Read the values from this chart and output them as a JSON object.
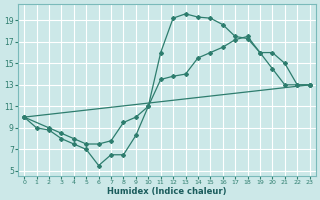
{
  "xlabel": "Humidex (Indice chaleur)",
  "bg_color": "#cce8e8",
  "grid_color": "#ffffff",
  "line_color": "#2e7d6e",
  "xlim": [
    -0.5,
    23.5
  ],
  "ylim": [
    4.5,
    20.5
  ],
  "xticks": [
    0,
    1,
    2,
    3,
    4,
    5,
    6,
    7,
    8,
    9,
    10,
    11,
    12,
    13,
    14,
    15,
    16,
    17,
    18,
    19,
    20,
    21,
    22,
    23
  ],
  "yticks": [
    5,
    7,
    9,
    11,
    13,
    15,
    17,
    19
  ],
  "line1_x": [
    0,
    1,
    2,
    3,
    4,
    5,
    6,
    7,
    8,
    9,
    10,
    11,
    12,
    13,
    14,
    15,
    16,
    17,
    18,
    19,
    20,
    21,
    22,
    23
  ],
  "line1_y": [
    10.0,
    9.0,
    8.8,
    8.0,
    7.5,
    7.0,
    5.5,
    6.5,
    6.5,
    8.3,
    11.0,
    16.0,
    19.2,
    19.6,
    19.3,
    19.2,
    18.6,
    17.5,
    17.3,
    16.0,
    14.5,
    13.0,
    13.0,
    13.0
  ],
  "line2_x": [
    0,
    2,
    3,
    4,
    5,
    6,
    7,
    8,
    9,
    10,
    11,
    12,
    13,
    14,
    15,
    16,
    17,
    18,
    19,
    20,
    21,
    22,
    23
  ],
  "line2_y": [
    10.0,
    9.0,
    8.5,
    8.0,
    7.5,
    7.5,
    7.8,
    9.5,
    10.0,
    11.0,
    13.5,
    13.8,
    14.0,
    15.5,
    16.0,
    16.5,
    17.2,
    17.5,
    16.0,
    16.0,
    15.0,
    13.0,
    13.0
  ],
  "line3_x": [
    0,
    23
  ],
  "line3_y": [
    10.0,
    13.0
  ]
}
